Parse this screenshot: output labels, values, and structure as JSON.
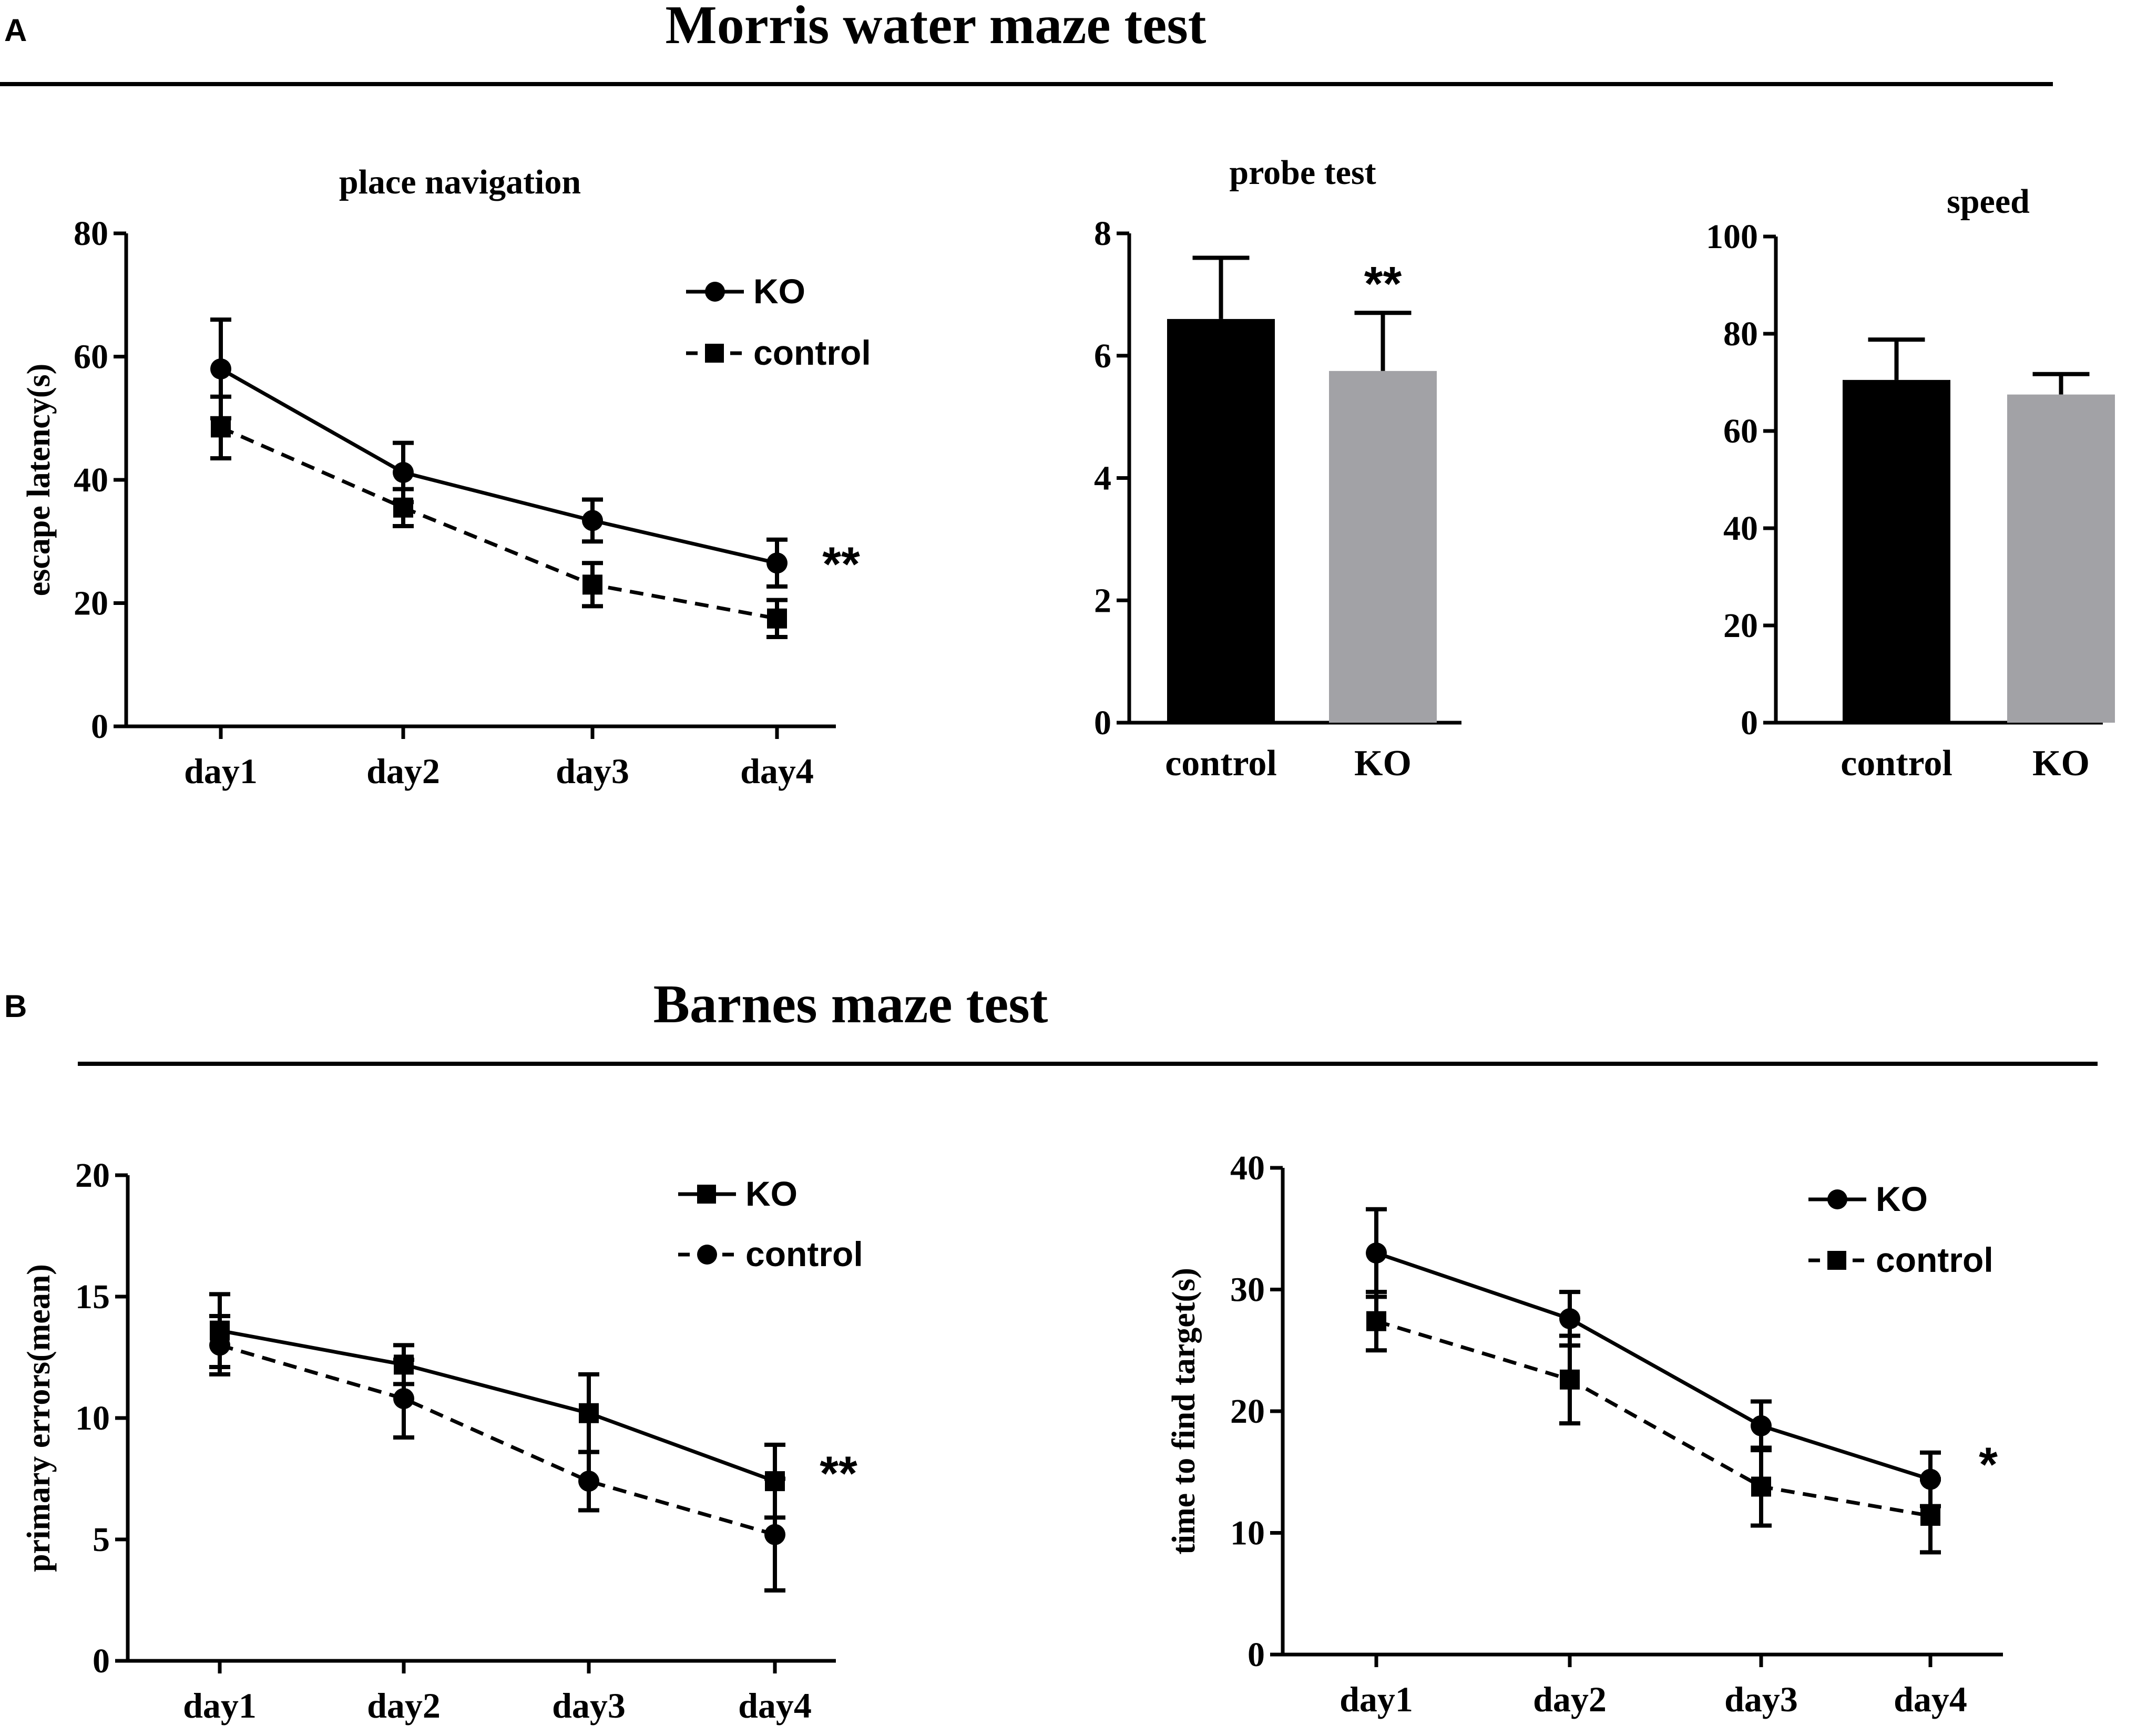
{
  "panel_a": {
    "label": "A",
    "title": "Morris water maze test"
  },
  "panel_b": {
    "label": "B",
    "title": "Barnes maze test"
  },
  "colors": {
    "axis": "#000000",
    "bar_control": "#000000",
    "bar_ko": "#a2a2a6",
    "line": "#000000"
  },
  "chart_data": [
    {
      "id": "place_navigation",
      "type": "line",
      "title": "place navigation",
      "xlabel": "",
      "ylabel": "escape latency(s)",
      "categories": [
        "day1",
        "day2",
        "day3",
        "day4"
      ],
      "ylim": [
        0,
        80
      ],
      "yticks": [
        "0",
        "20",
        "40",
        "60",
        "80"
      ],
      "series": [
        {
          "name": "KO",
          "marker": "circle",
          "dash": false,
          "values": [
            58,
            41.2,
            33.4,
            26.5
          ],
          "errors": [
            8,
            4.8,
            3.4,
            3.8
          ]
        },
        {
          "name": "control",
          "marker": "square",
          "dash": true,
          "values": [
            48.5,
            35.5,
            23,
            17.5
          ],
          "errors": [
            5,
            3,
            3.5,
            3
          ]
        }
      ],
      "significance": "**",
      "legend_position": "top-right"
    },
    {
      "id": "probe_test",
      "type": "bar",
      "title": "probe test",
      "ylabel": "",
      "categories": [
        "control",
        "KO"
      ],
      "values": [
        6.6,
        5.75
      ],
      "errors": [
        1.0,
        0.95
      ],
      "ylim": [
        0,
        8
      ],
      "yticks": [
        "0",
        "2",
        "4",
        "6",
        "8"
      ],
      "significance": [
        "",
        "**"
      ]
    },
    {
      "id": "speed",
      "type": "bar",
      "title": "speed",
      "ylabel": "",
      "categories": [
        "control",
        "KO"
      ],
      "values": [
        70.5,
        67.5
      ],
      "errors": [
        8.3,
        4.2
      ],
      "ylim": [
        0,
        100
      ],
      "yticks": [
        "0",
        "20",
        "40",
        "60",
        "80",
        "100"
      ]
    },
    {
      "id": "primary_errors",
      "type": "line",
      "title": "",
      "ylabel": "primary errors(mean)",
      "categories": [
        "day1",
        "day2",
        "day3",
        "day4"
      ],
      "ylim": [
        0,
        20
      ],
      "yticks": [
        "0",
        "5",
        "10",
        "15",
        "20"
      ],
      "series": [
        {
          "name": "KO",
          "marker": "square",
          "dash": false,
          "values": [
            13.6,
            12.2,
            10.2,
            7.4
          ],
          "errors": [
            1.5,
            0.8,
            1.6,
            1.5
          ]
        },
        {
          "name": "control",
          "marker": "circle",
          "dash": true,
          "values": [
            13,
            10.8,
            7.4,
            5.2
          ],
          "errors": [
            1.2,
            1.6,
            1.2,
            2.3
          ]
        }
      ],
      "significance": "**",
      "legend_position": "top-right"
    },
    {
      "id": "time_to_target",
      "type": "line",
      "title": "",
      "ylabel": "time to find target(s)",
      "categories": [
        "day1",
        "day2",
        "day3",
        "day4"
      ],
      "ylim": [
        0,
        40
      ],
      "yticks": [
        "0",
        "10",
        "20",
        "30",
        "40"
      ],
      "series": [
        {
          "name": "KO",
          "marker": "circle",
          "dash": false,
          "values": [
            33,
            27.6,
            18.8,
            14.4
          ],
          "errors": [
            3.6,
            2.2,
            2,
            2.2
          ]
        },
        {
          "name": "control",
          "marker": "square",
          "dash": true,
          "values": [
            27.4,
            22.6,
            13.8,
            11.4
          ],
          "errors": [
            2.4,
            3.6,
            3.2,
            3
          ]
        }
      ],
      "significance": "*",
      "legend_position": "top-right"
    }
  ]
}
